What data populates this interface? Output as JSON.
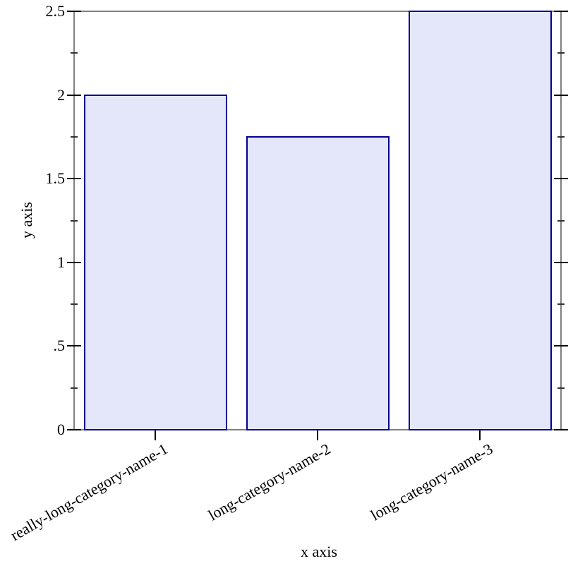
{
  "chart_data": {
    "type": "bar",
    "title": "",
    "xlabel": "x axis",
    "ylabel": "y axis",
    "categories": [
      "really-long-category-name-1",
      "long-category-name-2",
      "long-category-name-3"
    ],
    "values": [
      2,
      1.75,
      2.5
    ],
    "ylim": [
      0,
      2.5
    ],
    "y_major_ticks": [
      {
        "value": 0,
        "label": "0"
      },
      {
        "value": 0.5,
        "label": ".5"
      },
      {
        "value": 1,
        "label": "1"
      },
      {
        "value": 1.5,
        "label": "1.5"
      },
      {
        "value": 2,
        "label": "2"
      },
      {
        "value": 2.5,
        "label": "2.5"
      }
    ],
    "y_minor_ticks": [
      0.25,
      0.75,
      1.25,
      1.75,
      2.25
    ],
    "grid": false,
    "legend": "none",
    "category_label_angle_deg": -30,
    "colors": {
      "background": "#FFFFFF",
      "frame": "#808080",
      "major_tick": "#000000",
      "minor_tick": "#333333",
      "bar_fill": "#E4E6FA",
      "bar_border": "#000090",
      "text": "#000000"
    }
  }
}
